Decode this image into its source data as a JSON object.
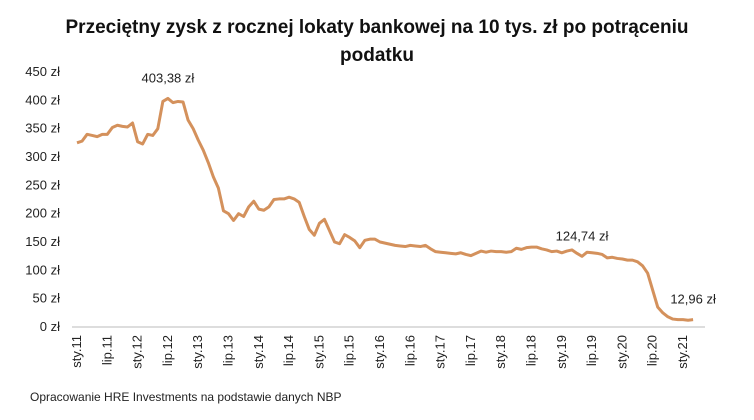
{
  "chart_data": {
    "type": "line",
    "title": "Przeciętny zysk z rocznej lokaty bankowej na 10 tys. zł po potrąceniu podatku",
    "source": "Opracowanie HRE Investments na podstawie danych NBP",
    "categories": [
      "sty.11",
      null,
      null,
      null,
      null,
      null,
      "lip.11",
      null,
      null,
      null,
      null,
      null,
      "sty.12",
      null,
      null,
      null,
      null,
      null,
      "lip.12",
      null,
      null,
      null,
      null,
      null,
      "sty.13",
      null,
      null,
      null,
      null,
      null,
      "lip.13",
      null,
      null,
      null,
      null,
      null,
      "sty.14",
      null,
      null,
      null,
      null,
      null,
      "lip.14",
      null,
      null,
      null,
      null,
      null,
      "sty.15",
      null,
      null,
      null,
      null,
      null,
      "lip.15",
      null,
      null,
      null,
      null,
      null,
      "sty.16",
      null,
      null,
      null,
      null,
      null,
      "lip.16",
      null,
      null,
      null,
      null,
      null,
      "sty.17",
      null,
      null,
      null,
      null,
      null,
      "lip.17",
      null,
      null,
      null,
      null,
      null,
      "sty.18",
      null,
      null,
      null,
      null,
      null,
      "lip.18",
      null,
      null,
      null,
      null,
      null,
      "sty.19",
      null,
      null,
      null,
      null,
      null,
      "lip.19",
      null,
      null,
      null,
      null,
      null,
      "sty.20",
      null,
      null,
      null,
      null,
      null,
      "lip.20",
      null,
      null,
      null,
      null,
      null,
      "sty.21",
      null,
      null
    ],
    "values": [
      325,
      328,
      340,
      338,
      336,
      340,
      340,
      352,
      356,
      354,
      353,
      360,
      327,
      323,
      340,
      338,
      350,
      398,
      403.38,
      396,
      398,
      397,
      365,
      350,
      330,
      312,
      290,
      265,
      245,
      205,
      200,
      188,
      200,
      195,
      212,
      222,
      208,
      206,
      212,
      225,
      226,
      226,
      229,
      226,
      220,
      195,
      172,
      162,
      183,
      190,
      170,
      150,
      147,
      163,
      158,
      152,
      140,
      153,
      155,
      155,
      150,
      148,
      146,
      144,
      143,
      142,
      144,
      143,
      142,
      144,
      138,
      133,
      132,
      131,
      130,
      129,
      131,
      128,
      126,
      130,
      134,
      132,
      134,
      133,
      133,
      132,
      133,
      139,
      137,
      140,
      141,
      141,
      138,
      136,
      133,
      134,
      131,
      134,
      136,
      130,
      124.74,
      132,
      131,
      130,
      128,
      122,
      123,
      121,
      120,
      118,
      118,
      115,
      108,
      95,
      65,
      35,
      25,
      18,
      14,
      13,
      13,
      12,
      12.96
    ],
    "value_labels": [
      null,
      null,
      null,
      null,
      null,
      null,
      null,
      null,
      null,
      null,
      null,
      null,
      null,
      null,
      null,
      null,
      null,
      null,
      "403,38 zł",
      null,
      null,
      null,
      null,
      null,
      null,
      null,
      null,
      null,
      null,
      null,
      null,
      null,
      null,
      null,
      null,
      null,
      null,
      null,
      null,
      null,
      null,
      null,
      null,
      null,
      null,
      null,
      null,
      null,
      null,
      null,
      null,
      null,
      null,
      null,
      null,
      null,
      null,
      null,
      null,
      null,
      null,
      null,
      null,
      null,
      null,
      null,
      null,
      null,
      null,
      null,
      null,
      null,
      null,
      null,
      null,
      null,
      null,
      null,
      null,
      null,
      null,
      null,
      null,
      null,
      null,
      null,
      null,
      null,
      null,
      null,
      null,
      null,
      null,
      null,
      null,
      null,
      null,
      null,
      null,
      null,
      "124,74 zł",
      null,
      null,
      null,
      null,
      null,
      null,
      null,
      null,
      null,
      null,
      null,
      null,
      null,
      null,
      null,
      null,
      null,
      null,
      null,
      null,
      null,
      "12,96 zł"
    ],
    "color": "#d4915c",
    "ylim": [
      0,
      450
    ],
    "yticks": [
      {
        "value": 0,
        "label": "0 zł"
      },
      {
        "value": 50,
        "label": "50 zł"
      },
      {
        "value": 100,
        "label": "100 zł"
      },
      {
        "value": 150,
        "label": "150 zł"
      },
      {
        "value": 200,
        "label": "200 zł"
      },
      {
        "value": 250,
        "label": "250 zł"
      },
      {
        "value": 300,
        "label": "300 zł"
      },
      {
        "value": 350,
        "label": "350 zł"
      },
      {
        "value": 400,
        "label": "400 zł"
      },
      {
        "value": 450,
        "label": "450 zł"
      }
    ],
    "grid": false
  }
}
